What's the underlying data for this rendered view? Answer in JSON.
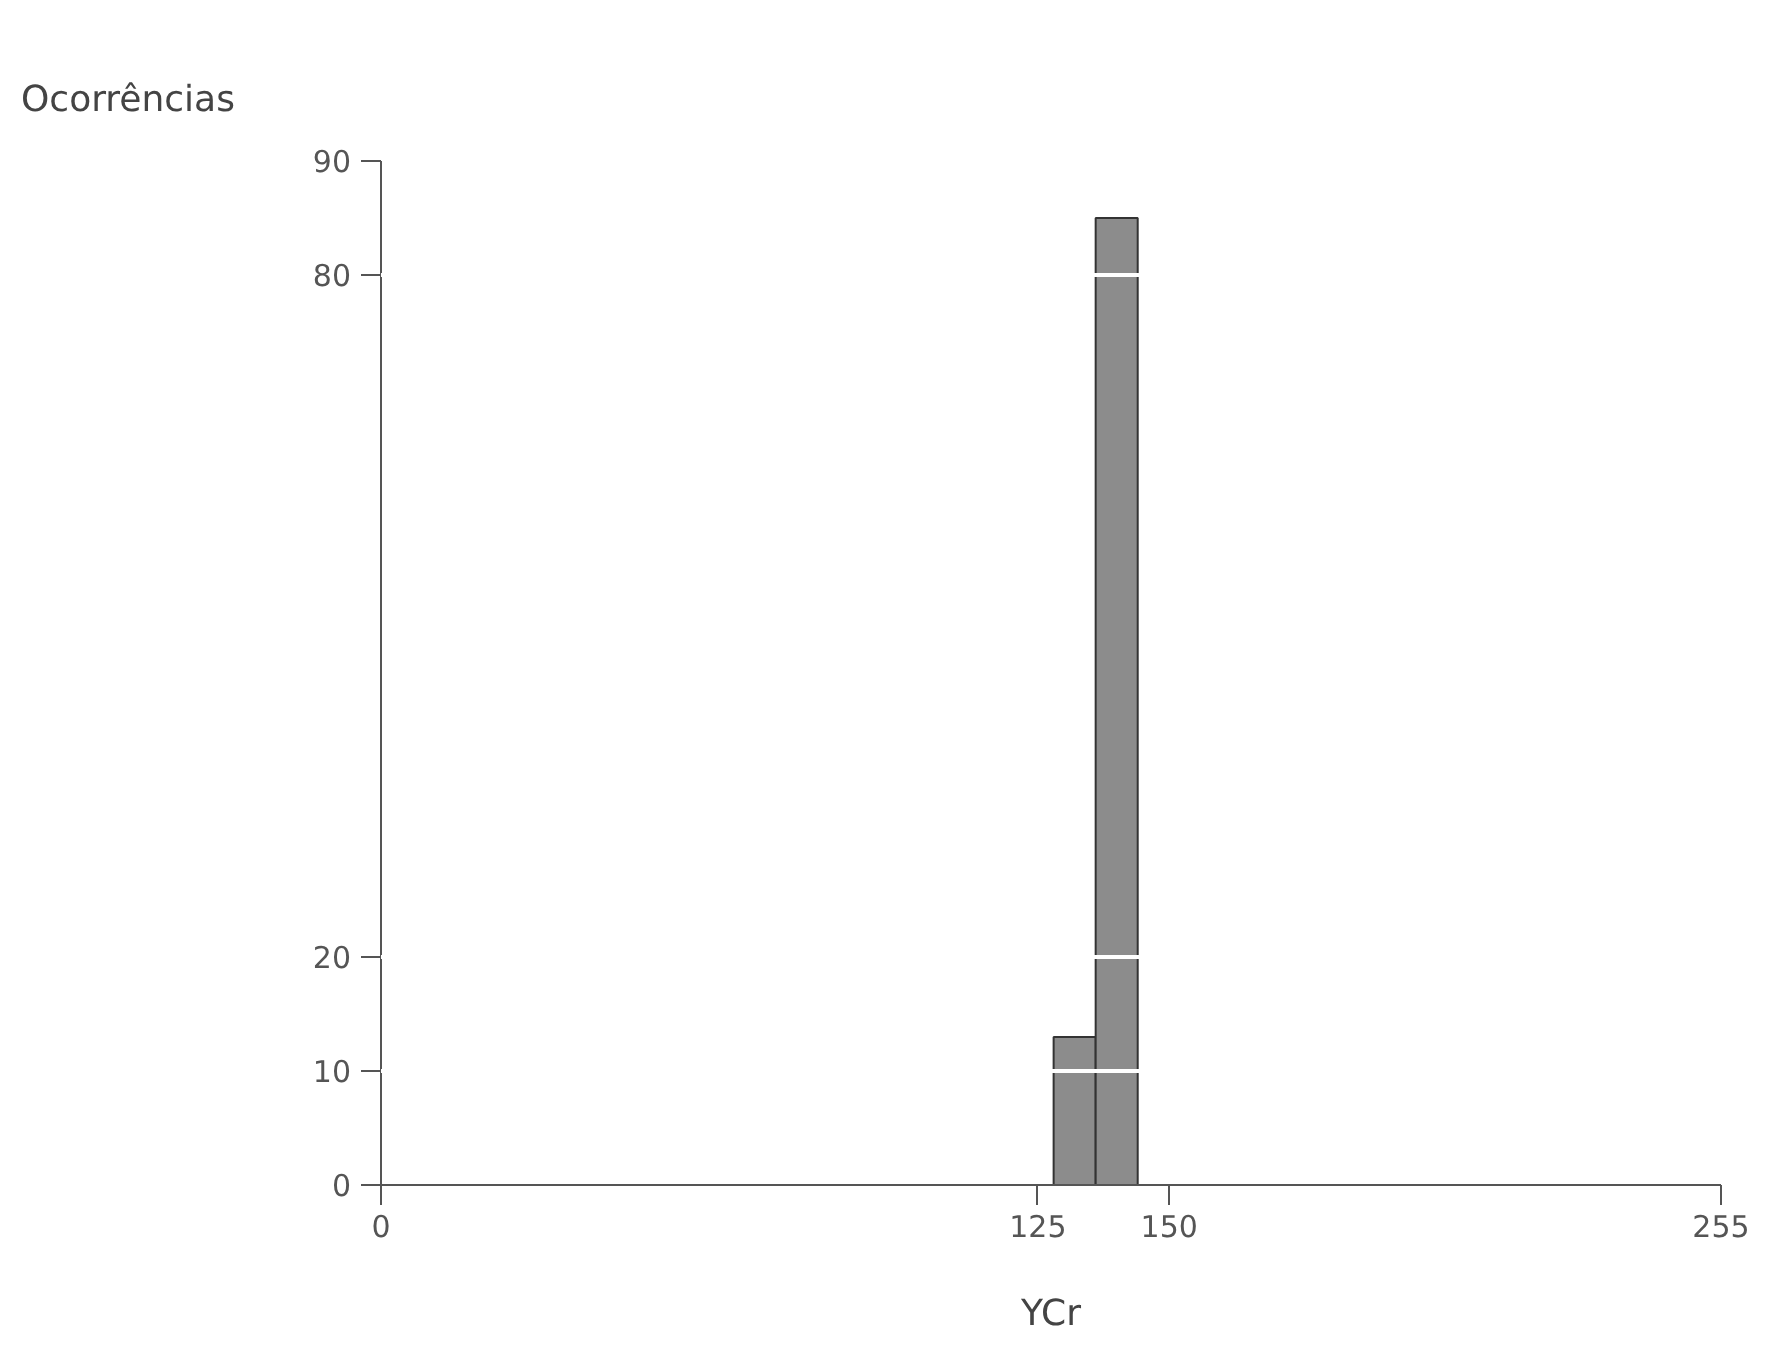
{
  "chart_data": {
    "type": "histogram",
    "xlabel": "YCr",
    "ylabel": "Ocorrências",
    "bins": [
      128,
      136,
      144
    ],
    "values": [
      13,
      85
    ],
    "color": "#8c8c8c",
    "xlim": [
      0,
      255
    ],
    "xticks": [
      0,
      125,
      150,
      255
    ],
    "ylim": [
      0,
      90
    ],
    "yticks": [
      0,
      10,
      20,
      80,
      90
    ],
    "grid": "y"
  }
}
